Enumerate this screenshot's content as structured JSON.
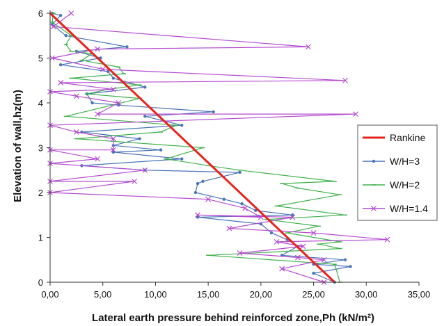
{
  "chart_data": {
    "type": "line",
    "title": "",
    "xlabel": "Lateral earth pressure behind reinforced zone,Ph (kN/m²)",
    "ylabel": "Elevation of wall,hz(m)",
    "xlim": [
      0,
      35
    ],
    "ylim": [
      0,
      6
    ],
    "x_ticks": [
      "0,00",
      "5,00",
      "10,00",
      "15,00",
      "20,00",
      "25,00",
      "30,00",
      "35,00"
    ],
    "y_ticks": [
      "0",
      "1",
      "2",
      "3",
      "4",
      "5",
      "6"
    ],
    "grid": false,
    "legend_position": "right",
    "series": [
      {
        "name": "Rankine",
        "color": "#e8231e",
        "marker": "none",
        "points": [
          [
            0,
            6
          ],
          [
            27,
            0
          ]
        ]
      },
      {
        "name": "W/H=3",
        "color": "#4a74b8",
        "marker": "dot",
        "points": [
          [
            0.2,
            6.0
          ],
          [
            1.0,
            5.95
          ],
          [
            0.2,
            5.75
          ],
          [
            1.5,
            5.5
          ],
          [
            7.3,
            5.25
          ],
          [
            2.5,
            5.15
          ],
          [
            4.8,
            5.0
          ],
          [
            1.0,
            4.85
          ],
          [
            5.5,
            4.7
          ],
          [
            6.0,
            4.55
          ],
          [
            9.0,
            4.35
          ],
          [
            3.5,
            4.2
          ],
          [
            4.0,
            4.0
          ],
          [
            6.5,
            3.95
          ],
          [
            15.5,
            3.8
          ],
          [
            9.0,
            3.7
          ],
          [
            12.5,
            3.5
          ],
          [
            3.0,
            3.35
          ],
          [
            8.5,
            3.2
          ],
          [
            6.0,
            3.05
          ],
          [
            10.5,
            2.95
          ],
          [
            6.0,
            2.9
          ],
          [
            12.5,
            2.75
          ],
          [
            3.0,
            2.6
          ],
          [
            9.0,
            2.5
          ],
          [
            18.0,
            2.45
          ],
          [
            14.5,
            2.25
          ],
          [
            14.0,
            2.2
          ],
          [
            13.8,
            2.0
          ],
          [
            16.5,
            1.85
          ],
          [
            18.2,
            1.75
          ],
          [
            19.5,
            1.6
          ],
          [
            23.0,
            1.5
          ],
          [
            14.0,
            1.45
          ],
          [
            20.0,
            1.3
          ],
          [
            21.0,
            1.1
          ],
          [
            22.5,
            0.95
          ],
          [
            23.5,
            0.8
          ],
          [
            22.0,
            0.6
          ],
          [
            28.0,
            0.5
          ],
          [
            25.0,
            0.4
          ],
          [
            28.5,
            0.35
          ],
          [
            25.0,
            0.2
          ],
          [
            27.0,
            0.0
          ]
        ]
      },
      {
        "name": "W/H=2",
        "color": "#3fb14b",
        "marker": "dash",
        "points": [
          [
            0.3,
            6.0
          ],
          [
            0.2,
            5.8
          ],
          [
            2.0,
            5.5
          ],
          [
            1.5,
            5.3
          ],
          [
            2.0,
            5.15
          ],
          [
            4.0,
            5.1
          ],
          [
            3.0,
            4.95
          ],
          [
            6.5,
            4.8
          ],
          [
            7.0,
            4.65
          ],
          [
            2.0,
            4.55
          ],
          [
            8.5,
            4.4
          ],
          [
            5.5,
            4.3
          ],
          [
            3.5,
            4.2
          ],
          [
            8.5,
            4.1
          ],
          [
            1.5,
            3.7
          ],
          [
            12.0,
            3.5
          ],
          [
            10.5,
            3.35
          ],
          [
            2.5,
            3.2
          ],
          [
            14.5,
            3.0
          ],
          [
            11.0,
            2.75
          ],
          [
            15.0,
            2.6
          ],
          [
            18.0,
            2.5
          ],
          [
            27.0,
            2.25
          ],
          [
            22.0,
            2.2
          ],
          [
            23.5,
            2.1
          ],
          [
            27.5,
            1.95
          ],
          [
            21.5,
            1.7
          ],
          [
            28.0,
            1.5
          ],
          [
            20.5,
            1.4
          ],
          [
            25.5,
            1.25
          ],
          [
            22.5,
            1.1
          ],
          [
            27.5,
            0.9
          ],
          [
            25.5,
            0.85
          ],
          [
            27.5,
            0.75
          ],
          [
            15.0,
            0.6
          ],
          [
            27.0,
            0.4
          ],
          [
            27.5,
            0.0
          ]
        ]
      },
      {
        "name": "W/H=1.4",
        "color": "#b44ad0",
        "marker": "x",
        "points": [
          [
            2.0,
            6.0
          ],
          [
            0.3,
            5.7
          ],
          [
            24.5,
            5.25
          ],
          [
            4.5,
            5.2
          ],
          [
            0.2,
            5.0
          ],
          [
            5.0,
            4.75
          ],
          [
            28.0,
            4.5
          ],
          [
            1.0,
            4.45
          ],
          [
            6.0,
            4.3
          ],
          [
            0.0,
            4.25
          ],
          [
            2.5,
            4.15
          ],
          [
            6.5,
            4.0
          ],
          [
            4.5,
            3.75
          ],
          [
            29.0,
            3.75
          ],
          [
            0.0,
            3.5
          ],
          [
            2.5,
            3.35
          ],
          [
            6.0,
            3.2
          ],
          [
            6.0,
            2.95
          ],
          [
            0.0,
            2.95
          ],
          [
            4.5,
            2.75
          ],
          [
            0.0,
            2.65
          ],
          [
            9.0,
            2.5
          ],
          [
            0.0,
            2.25
          ],
          [
            8.0,
            2.25
          ],
          [
            0.0,
            2.0
          ],
          [
            15.0,
            1.85
          ],
          [
            18.5,
            1.65
          ],
          [
            20.0,
            1.45
          ],
          [
            14.0,
            1.5
          ],
          [
            23.0,
            1.45
          ],
          [
            17.0,
            1.2
          ],
          [
            25.0,
            1.1
          ],
          [
            32.0,
            0.95
          ],
          [
            21.5,
            0.9
          ],
          [
            24.0,
            0.8
          ],
          [
            18.0,
            0.65
          ],
          [
            23.5,
            0.55
          ],
          [
            26.0,
            0.5
          ],
          [
            22.0,
            0.3
          ],
          [
            26.0,
            0.0
          ]
        ]
      }
    ]
  }
}
